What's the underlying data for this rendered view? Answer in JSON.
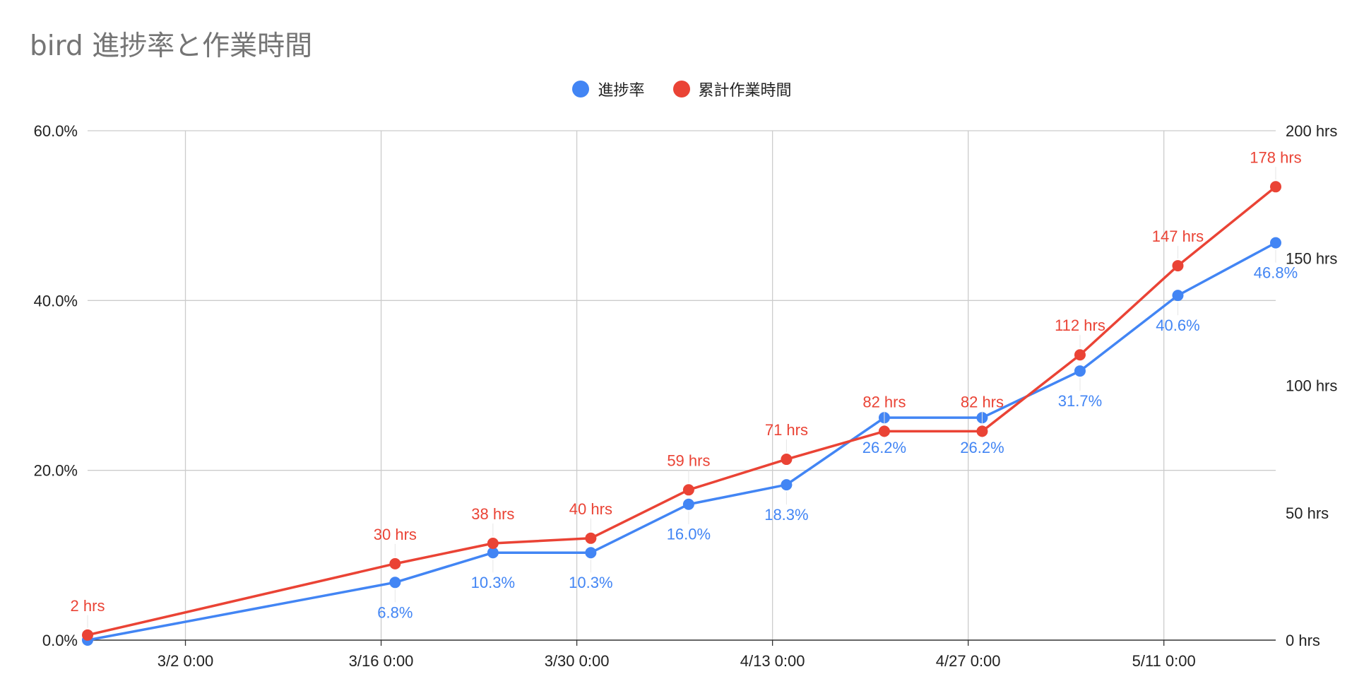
{
  "chart_data": {
    "type": "line",
    "title": "bird 進捗率と作業時間",
    "legend_position": "top",
    "grid": true,
    "x_axis": {
      "type": "date",
      "range": [
        "2024-02-24",
        "2024-05-19"
      ],
      "ticks": [
        {
          "date": "2024-03-02",
          "label": "3/2 0:00"
        },
        {
          "date": "2024-03-16",
          "label": "3/16 0:00"
        },
        {
          "date": "2024-03-30",
          "label": "3/30 0:00"
        },
        {
          "date": "2024-04-13",
          "label": "4/13 0:00"
        },
        {
          "date": "2024-04-27",
          "label": "4/27 0:00"
        },
        {
          "date": "2024-05-11",
          "label": "5/11 0:00"
        }
      ]
    },
    "y_left": {
      "range": [
        0,
        60
      ],
      "ticks": [
        {
          "value": 0,
          "label": "0.0%"
        },
        {
          "value": 20,
          "label": "20.0%"
        },
        {
          "value": 40,
          "label": "40.0%"
        },
        {
          "value": 60,
          "label": "60.0%"
        }
      ]
    },
    "y_right": {
      "range": [
        0,
        200
      ],
      "ticks": [
        {
          "value": 0,
          "label": "0 hrs"
        },
        {
          "value": 50,
          "label": "50 hrs"
        },
        {
          "value": 100,
          "label": "100 hrs"
        },
        {
          "value": 150,
          "label": "150 hrs"
        },
        {
          "value": 200,
          "label": "200 hrs"
        }
      ]
    },
    "x": [
      "2024-02-24",
      "2024-03-17",
      "2024-03-24",
      "2024-03-31",
      "2024-04-07",
      "2024-04-14",
      "2024-04-21",
      "2024-04-28",
      "2024-05-05",
      "2024-05-12",
      "2024-05-19"
    ],
    "series": [
      {
        "name": "進捗率",
        "axis": "left",
        "color": "#4285F4",
        "values": [
          0,
          6.8,
          10.3,
          10.3,
          16.0,
          18.3,
          26.2,
          26.2,
          31.7,
          40.6,
          46.8
        ],
        "labels": [
          "",
          "6.8%",
          "10.3%",
          "10.3%",
          "16.0%",
          "18.3%",
          "26.2%",
          "26.2%",
          "31.7%",
          "40.6%",
          "46.8%"
        ],
        "label_position": "below"
      },
      {
        "name": "累計作業時間",
        "axis": "right",
        "color": "#EA4335",
        "values": [
          2,
          30,
          38,
          40,
          59,
          71,
          82,
          82,
          112,
          147,
          178
        ],
        "labels": [
          "2 hrs",
          "30 hrs",
          "38 hrs",
          "40 hrs",
          "59 hrs",
          "71 hrs",
          "82 hrs",
          "82 hrs",
          "112 hrs",
          "147 hrs",
          "178 hrs"
        ],
        "label_position": "above"
      }
    ]
  }
}
